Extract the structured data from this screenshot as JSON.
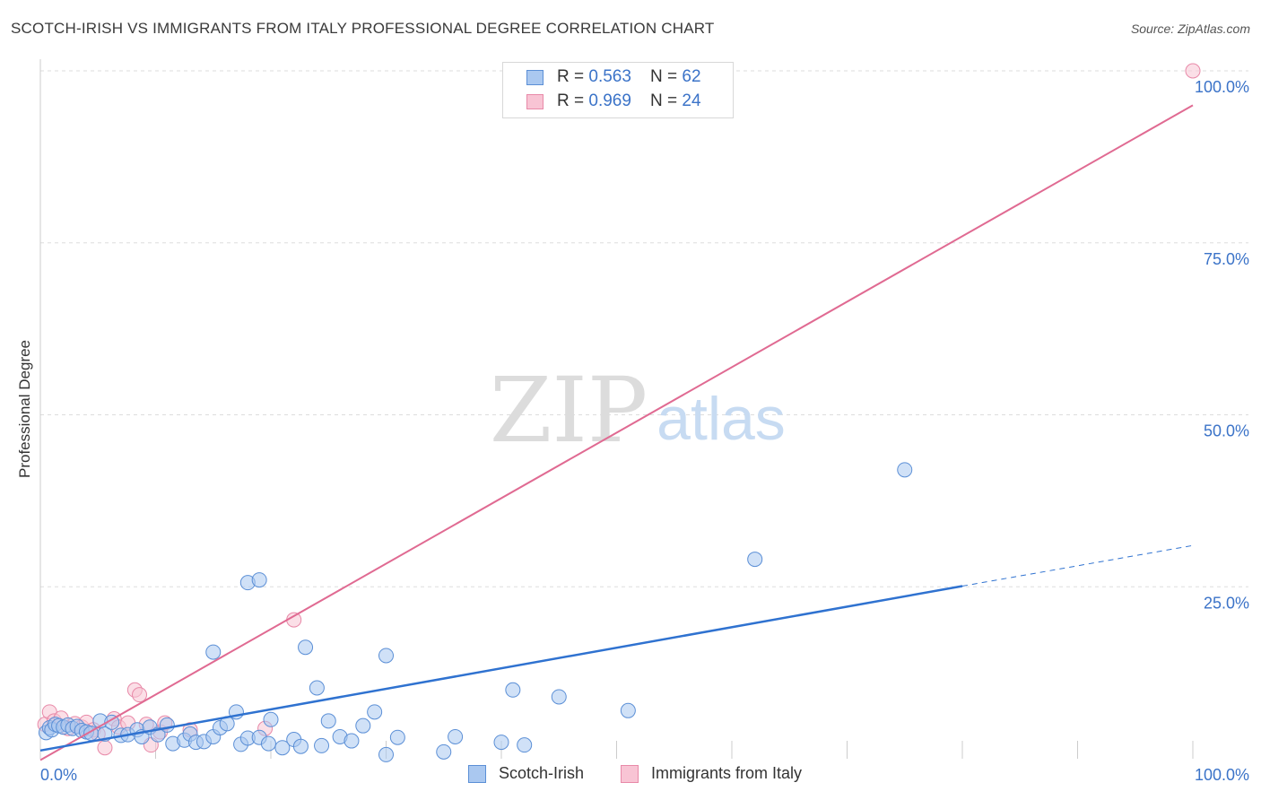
{
  "header": {
    "title": "SCOTCH-IRISH VS IMMIGRANTS FROM ITALY PROFESSIONAL DEGREE CORRELATION CHART",
    "source": "Source: ZipAtlas.com"
  },
  "legend": {
    "rows": [
      {
        "r_label": "R = ",
        "r_value": "0.563",
        "n_label": "N = ",
        "n_value": "62"
      },
      {
        "r_label": "R = ",
        "r_value": "0.969",
        "n_label": "N = ",
        "n_value": "24"
      }
    ]
  },
  "bottom_legend": {
    "items": [
      {
        "label": "Scotch-Irish"
      },
      {
        "label": "Immigrants from Italy"
      }
    ]
  },
  "watermark": {
    "zip": "ZIP",
    "atlas": "atlas"
  },
  "colors": {
    "blue_fill": "#aac8f0",
    "blue_stroke": "#5b8fd6",
    "blue_line": "#2f72d0",
    "pink_fill": "#f8c4d4",
    "pink_stroke": "#e889a8",
    "pink_line": "#e06a92",
    "tick_label": "#3b73c8",
    "grid": "#dddddd"
  },
  "chart_data": {
    "type": "scatter",
    "title": "SCOTCH-IRISH VS IMMIGRANTS FROM ITALY PROFESSIONAL DEGREE CORRELATION CHART",
    "xlabel": "",
    "ylabel": "Professional Degree",
    "xlim": [
      0,
      100
    ],
    "ylim": [
      0,
      100
    ],
    "x_tick_labels": [
      "0.0%",
      "100.0%"
    ],
    "y_tick_labels": [
      "25.0%",
      "50.0%",
      "75.0%",
      "100.0%"
    ],
    "y_ticks": [
      25,
      50,
      75,
      100
    ],
    "grid": true,
    "legend_position": "top-center",
    "series": [
      {
        "name": "Scotch-Irish",
        "r": 0.563,
        "n": 62,
        "trend": {
          "x0": 0,
          "y0": 1.2,
          "x1": 80,
          "y1": 25.1,
          "dashed_to_x": 100,
          "dashed_to_y": 31.0
        },
        "points": [
          [
            0.5,
            3.8
          ],
          [
            0.8,
            4.5
          ],
          [
            1.0,
            4.2
          ],
          [
            1.3,
            5.0
          ],
          [
            1.6,
            4.8
          ],
          [
            2.0,
            4.6
          ],
          [
            2.4,
            4.9
          ],
          [
            2.8,
            4.4
          ],
          [
            3.2,
            4.7
          ],
          [
            3.6,
            4.1
          ],
          [
            4.0,
            3.9
          ],
          [
            4.4,
            3.7
          ],
          [
            5.2,
            5.5
          ],
          [
            5.6,
            3.6
          ],
          [
            6.2,
            5.3
          ],
          [
            7.0,
            3.4
          ],
          [
            7.6,
            3.5
          ],
          [
            8.4,
            4.2
          ],
          [
            8.8,
            3.2
          ],
          [
            9.5,
            4.6
          ],
          [
            10.2,
            3.5
          ],
          [
            11.0,
            4.9
          ],
          [
            11.5,
            2.2
          ],
          [
            12.5,
            2.7
          ],
          [
            13.0,
            3.6
          ],
          [
            13.5,
            2.4
          ],
          [
            14.2,
            2.5
          ],
          [
            15.0,
            3.2
          ],
          [
            15.6,
            4.5
          ],
          [
            16.2,
            5.1
          ],
          [
            17.0,
            6.8
          ],
          [
            17.4,
            2.1
          ],
          [
            18.0,
            3.0
          ],
          [
            19.0,
            3.1
          ],
          [
            19.8,
            2.2
          ],
          [
            20.0,
            5.7
          ],
          [
            21.0,
            1.6
          ],
          [
            22.0,
            2.8
          ],
          [
            22.6,
            1.8
          ],
          [
            23.0,
            16.2
          ],
          [
            24.0,
            10.3
          ],
          [
            24.4,
            1.9
          ],
          [
            25.0,
            5.5
          ],
          [
            26.0,
            3.2
          ],
          [
            27.0,
            2.6
          ],
          [
            28.0,
            4.8
          ],
          [
            29.0,
            6.8
          ],
          [
            30.0,
            15.0
          ],
          [
            31.0,
            3.1
          ],
          [
            35.0,
            1.0
          ],
          [
            36.0,
            3.2
          ],
          [
            40.0,
            2.4
          ],
          [
            41.0,
            10.0
          ],
          [
            42.0,
            2.0
          ],
          [
            45.0,
            9.0
          ],
          [
            51.0,
            7.0
          ],
          [
            62.0,
            29.0
          ],
          [
            75.0,
            42.0
          ],
          [
            18.0,
            25.6
          ],
          [
            19.0,
            26.0
          ],
          [
            15.0,
            15.5
          ],
          [
            30.0,
            0.6
          ]
        ]
      },
      {
        "name": "Immigrants from Italy",
        "r": 0.969,
        "n": 24,
        "trend": {
          "x0": 0,
          "y0": -0.2,
          "x1": 100,
          "y1": 95.0
        },
        "points": [
          [
            0.4,
            5.0
          ],
          [
            0.8,
            6.8
          ],
          [
            1.2,
            5.5
          ],
          [
            1.8,
            5.9
          ],
          [
            2.4,
            4.4
          ],
          [
            3.0,
            5.1
          ],
          [
            3.6,
            4.6
          ],
          [
            4.0,
            5.3
          ],
          [
            4.6,
            4.2
          ],
          [
            5.0,
            3.6
          ],
          [
            5.6,
            1.6
          ],
          [
            6.4,
            5.8
          ],
          [
            6.8,
            4.6
          ],
          [
            7.6,
            5.2
          ],
          [
            8.2,
            10.0
          ],
          [
            8.6,
            9.3
          ],
          [
            9.2,
            5.0
          ],
          [
            9.6,
            2.0
          ],
          [
            10.4,
            3.9
          ],
          [
            10.8,
            5.2
          ],
          [
            13.0,
            4.2
          ],
          [
            19.5,
            4.4
          ],
          [
            22.0,
            20.2
          ],
          [
            100.0,
            100.0
          ]
        ]
      }
    ]
  }
}
